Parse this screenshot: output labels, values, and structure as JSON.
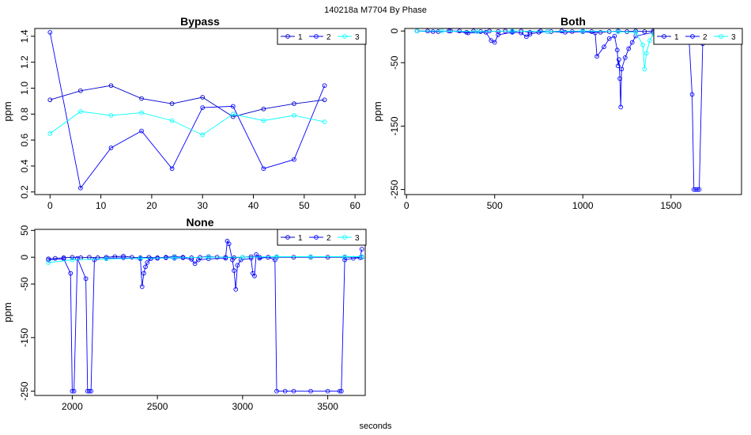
{
  "figure": {
    "title": "140218a   M7704   By Phase",
    "xlabel": "seconds"
  },
  "colors": {
    "s1": "#0000cc",
    "s2": "#0000ff",
    "s3": "#00ffff"
  },
  "chart_data": [
    {
      "type": "line",
      "title": "Bypass",
      "ylabel": "ppm",
      "xlim": [
        -3,
        62
      ],
      "ylim": [
        0.18,
        1.46
      ],
      "xticks": [
        0,
        10,
        20,
        30,
        40,
        50,
        60
      ],
      "yticks": [
        0.2,
        0.4,
        0.6,
        0.8,
        1.0,
        1.2,
        1.4
      ],
      "ytick_labels": [
        "0.2",
        "0.4",
        "0.6",
        "0.8",
        "1.0",
        "1.2",
        "1.4"
      ],
      "legend": {
        "placement": "top-right",
        "labels": [
          "1",
          "2",
          "3"
        ]
      },
      "series": [
        {
          "name": "1",
          "x": [
            0,
            6,
            12,
            18,
            24,
            30,
            36,
            42,
            48,
            54
          ],
          "y": [
            0.91,
            0.98,
            1.02,
            0.92,
            0.88,
            0.93,
            0.78,
            0.84,
            0.88,
            0.91
          ]
        },
        {
          "name": "2",
          "x": [
            0,
            6,
            12,
            18,
            24,
            30,
            36,
            42,
            48,
            54
          ],
          "y": [
            1.43,
            0.23,
            0.54,
            0.67,
            0.38,
            0.85,
            0.86,
            0.38,
            0.45,
            1.02
          ]
        },
        {
          "name": "3",
          "x": [
            0,
            6,
            12,
            18,
            24,
            30,
            36,
            42,
            48,
            54
          ],
          "y": [
            0.65,
            0.82,
            0.79,
            0.81,
            0.75,
            0.64,
            0.8,
            0.75,
            0.79,
            0.74
          ]
        }
      ]
    },
    {
      "type": "line",
      "title": "Both",
      "ylabel": "ppm",
      "xlim": [
        -10,
        1900
      ],
      "ylim": [
        -258,
        4
      ],
      "xticks": [
        0,
        500,
        1000,
        1500
      ],
      "yticks": [
        0,
        -50,
        -150,
        -250
      ],
      "ytick_labels": [
        "0",
        "-50",
        "-150",
        "-250"
      ],
      "legend": {
        "placement": "top-right",
        "labels": [
          "1",
          "2",
          "3"
        ]
      },
      "series": [
        {
          "name": "1",
          "x": [
            60,
            120,
            180,
            240,
            300,
            340,
            380,
            420,
            470,
            520,
            560,
            600,
            650,
            700,
            760,
            820,
            880,
            940,
            1000,
            1050,
            1100,
            1150,
            1200,
            1250,
            1300,
            1350,
            1400,
            1450,
            1500,
            1560,
            1620,
            1680,
            1740,
            1800
          ],
          "y": [
            0,
            0,
            -1,
            0,
            0,
            -2,
            0,
            -1,
            0,
            -1,
            0,
            -1,
            0,
            -2,
            0,
            -1,
            0,
            -1,
            0,
            -1,
            -2,
            -1,
            0,
            -1,
            0,
            -1,
            0,
            -1,
            0,
            -1,
            0,
            -1,
            0,
            -1
          ]
        },
        {
          "name": "2",
          "x": [
            60,
            150,
            250,
            350,
            450,
            480,
            500,
            520,
            600,
            650,
            680,
            700,
            750,
            800,
            900,
            1000,
            1070,
            1080,
            1120,
            1150,
            1180,
            1195,
            1200,
            1205,
            1210,
            1215,
            1220,
            1240,
            1260,
            1280,
            1300,
            1400,
            1500,
            1600,
            1620,
            1630,
            1640,
            1650,
            1660,
            1680,
            1700,
            1750,
            1800
          ],
          "y": [
            0,
            -1,
            0,
            -3,
            -2,
            -15,
            -18,
            -6,
            -2,
            -3,
            -9,
            -5,
            -2,
            -1,
            -2,
            -1,
            -3,
            -40,
            -25,
            -12,
            -8,
            -30,
            -55,
            -45,
            -75,
            -120,
            -60,
            -42,
            -28,
            -18,
            -8,
            -2,
            -1,
            -1,
            -100,
            -250,
            -250,
            -250,
            -250,
            -20,
            -2,
            -1,
            -1
          ]
        },
        {
          "name": "3",
          "x": [
            60,
            200,
            400,
            600,
            800,
            1000,
            1200,
            1300,
            1340,
            1350,
            1360,
            1380,
            1400,
            1450,
            1500,
            1600,
            1700,
            1800
          ],
          "y": [
            0,
            0,
            -1,
            0,
            -1,
            0,
            -1,
            -2,
            -22,
            -60,
            -35,
            -15,
            -5,
            -2,
            -1,
            0,
            0,
            0
          ]
        }
      ]
    },
    {
      "type": "line",
      "title": "None",
      "ylabel": "ppm",
      "xlim": [
        1780,
        3720
      ],
      "ylim": [
        -258,
        52
      ],
      "xticks": [
        2000,
        2500,
        3000,
        3500
      ],
      "yticks": [
        50,
        0,
        -50,
        -150,
        -250
      ],
      "ytick_labels": [
        "50",
        "0",
        "-50",
        "-150",
        "-250"
      ],
      "legend": {
        "placement": "top-right",
        "labels": [
          "1",
          "2",
          "3"
        ]
      },
      "series": [
        {
          "name": "1",
          "x": [
            1860,
            1900,
            1950,
            2000,
            2050,
            2100,
            2150,
            2200,
            2250,
            2300,
            2350,
            2400,
            2450,
            2500,
            2550,
            2600,
            2650,
            2700,
            2750,
            2800,
            2850,
            2900,
            2950,
            3000,
            3050,
            3100,
            3150,
            3200,
            3300,
            3400,
            3500,
            3600,
            3700
          ],
          "y": [
            -3,
            -2,
            -1,
            0,
            -1,
            0,
            -1,
            0,
            1,
            2,
            0,
            -1,
            0,
            -1,
            0,
            1,
            0,
            -1,
            0,
            1,
            0,
            0,
            -1,
            0,
            1,
            0,
            0,
            0,
            0,
            0,
            0,
            0,
            0
          ]
        },
        {
          "name": "2",
          "x": [
            1860,
            1950,
            1990,
            2000,
            2010,
            2030,
            2080,
            2090,
            2100,
            2110,
            2130,
            2200,
            2300,
            2400,
            2410,
            2420,
            2430,
            2440,
            2460,
            2500,
            2550,
            2600,
            2650,
            2700,
            2720,
            2740,
            2800,
            2900,
            2910,
            2920,
            2940,
            2950,
            2960,
            2970,
            2990,
            3050,
            3060,
            3070,
            3080,
            3100,
            3150,
            3190,
            3200,
            3250,
            3300,
            3400,
            3500,
            3570,
            3580,
            3600,
            3650,
            3690,
            3700
          ],
          "y": [
            -5,
            -3,
            -30,
            -250,
            -250,
            -2,
            -40,
            -250,
            -250,
            -250,
            -5,
            -2,
            -1,
            -3,
            -55,
            -30,
            -18,
            -10,
            -3,
            -2,
            -1,
            -2,
            -1,
            -4,
            -12,
            -5,
            -3,
            -2,
            30,
            25,
            -5,
            -25,
            -60,
            -15,
            -5,
            -2,
            -30,
            -35,
            5,
            -2,
            0,
            -5,
            -250,
            -250,
            -250,
            -250,
            -250,
            -250,
            -250,
            -5,
            -2,
            -1,
            15
          ]
        },
        {
          "name": "3",
          "x": [
            1860,
            2000,
            2200,
            2400,
            2600,
            2800,
            3000,
            3200,
            3400,
            3600,
            3700
          ],
          "y": [
            -10,
            -5,
            -3,
            -2,
            -1,
            0,
            0,
            1,
            1,
            1,
            1
          ]
        }
      ]
    }
  ]
}
